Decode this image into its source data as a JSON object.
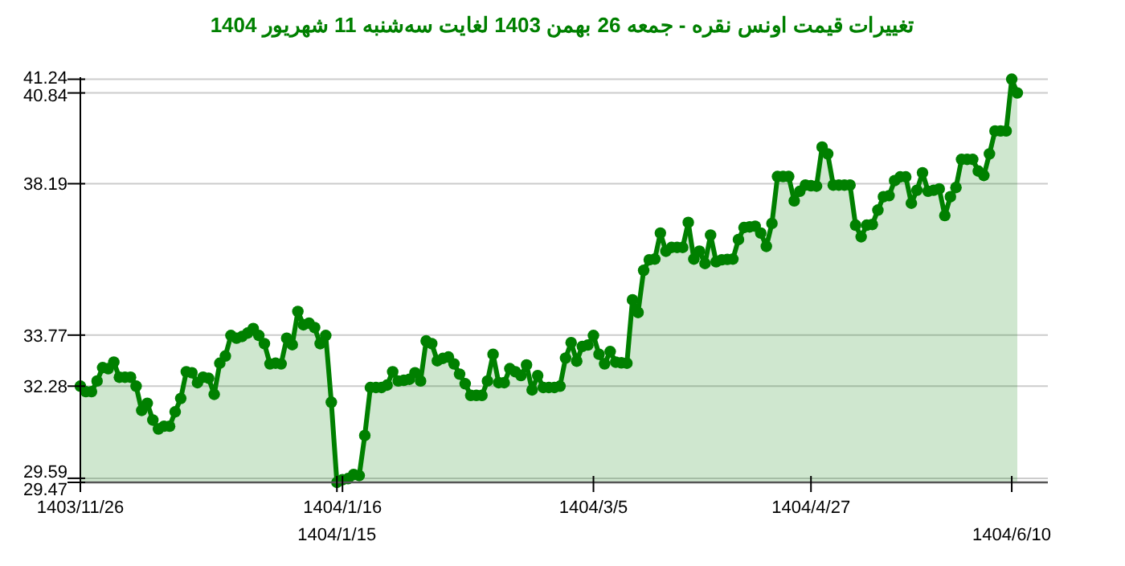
{
  "chart_data": {
    "type": "area",
    "title": "تغییرات قیمت اونس نقره - جمعه  26 بهمن 1403 لغایت سه‌شنبه  11 شهریور 1404",
    "categories": [
      "1403/11/26",
      null,
      null,
      null,
      null,
      null,
      null,
      null,
      null,
      null,
      null,
      null,
      null,
      null,
      null,
      null,
      null,
      null,
      null,
      null,
      null,
      null,
      null,
      null,
      null,
      null,
      null,
      null,
      null,
      null,
      null,
      null,
      null,
      null,
      null,
      null,
      null,
      null,
      null,
      null,
      null,
      null,
      null,
      null,
      null,
      null,
      "1404/1/15",
      "1404/1/16",
      null,
      null,
      null,
      null,
      null,
      null,
      null,
      null,
      null,
      null,
      null,
      null,
      null,
      null,
      null,
      null,
      null,
      null,
      null,
      null,
      null,
      null,
      null,
      null,
      null,
      null,
      null,
      null,
      null,
      null,
      null,
      null,
      null,
      null,
      null,
      null,
      null,
      null,
      null,
      null,
      null,
      null,
      null,
      null,
      "1404/3/5",
      null,
      null,
      null,
      null,
      null,
      null,
      null,
      null,
      null,
      null,
      null,
      null,
      null,
      null,
      null,
      null,
      null,
      null,
      null,
      null,
      null,
      null,
      null,
      null,
      null,
      null,
      null,
      null,
      null,
      null,
      null,
      null,
      null,
      null,
      null,
      null,
      null,
      null,
      "1404/4/27",
      null,
      null,
      null,
      null,
      null,
      null,
      null,
      null,
      null,
      null,
      null,
      null,
      null,
      null,
      null,
      null,
      null,
      null,
      null,
      null,
      null,
      null,
      null,
      null,
      null,
      null,
      null,
      null,
      null,
      null,
      null,
      null,
      null,
      null,
      null,
      "1404/6/10",
      null
    ],
    "values": [
      32.28,
      32.12,
      32.12,
      32.43,
      32.82,
      32.79,
      32.98,
      32.54,
      32.54,
      32.54,
      32.28,
      31.57,
      31.78,
      31.29,
      31.03,
      31.11,
      31.11,
      31.53,
      31.92,
      32.7,
      32.67,
      32.38,
      32.54,
      32.51,
      32.04,
      32.95,
      33.16,
      33.76,
      33.68,
      33.73,
      33.83,
      33.96,
      33.76,
      33.52,
      32.93,
      32.95,
      32.93,
      33.68,
      33.49,
      34.46,
      34.07,
      34.12,
      33.99,
      33.52,
      33.76,
      31.81,
      29.47,
      29.55,
      29.58,
      29.7,
      29.67,
      30.84,
      32.24,
      32.24,
      32.24,
      32.31,
      32.7,
      32.43,
      32.45,
      32.48,
      32.67,
      32.43,
      33.6,
      33.52,
      33.02,
      33.09,
      33.13,
      32.93,
      32.63,
      32.35,
      32.01,
      32.01,
      32.01,
      32.43,
      33.21,
      32.38,
      32.38,
      32.79,
      32.7,
      32.59,
      32.9,
      32.17,
      32.59,
      32.24,
      32.24,
      32.24,
      32.28,
      33.1,
      33.55,
      33.01,
      33.44,
      33.48,
      33.76,
      33.21,
      32.93,
      33.29,
      32.98,
      32.96,
      32.95,
      34.8,
      34.43,
      35.66,
      35.97,
      35.99,
      36.75,
      36.22,
      36.33,
      36.33,
      36.33,
      37.06,
      35.99,
      36.22,
      35.86,
      36.69,
      35.91,
      35.97,
      35.98,
      35.99,
      36.56,
      36.91,
      36.93,
      36.95,
      36.75,
      36.36,
      37.03,
      38.4,
      38.4,
      38.4,
      37.69,
      37.97,
      38.15,
      38.13,
      38.12,
      39.26,
      39.06,
      38.15,
      38.15,
      38.15,
      38.15,
      36.98,
      36.64,
      36.98,
      37.0,
      37.42,
      37.81,
      37.84,
      38.28,
      38.39,
      38.39,
      37.62,
      38.0,
      38.51,
      37.97,
      38.0,
      38.04,
      37.26,
      37.81,
      38.08,
      38.9,
      38.9,
      38.9,
      38.56,
      38.43,
      39.06,
      39.73,
      39.73,
      39.73,
      41.24,
      40.84
    ],
    "color": "#008000",
    "marker": "circle",
    "grid": "y",
    "ylim": [
      29.47,
      41.3
    ],
    "yticks": [
      29.47,
      29.59,
      32.28,
      33.77,
      38.19,
      40.84,
      41.24
    ]
  }
}
